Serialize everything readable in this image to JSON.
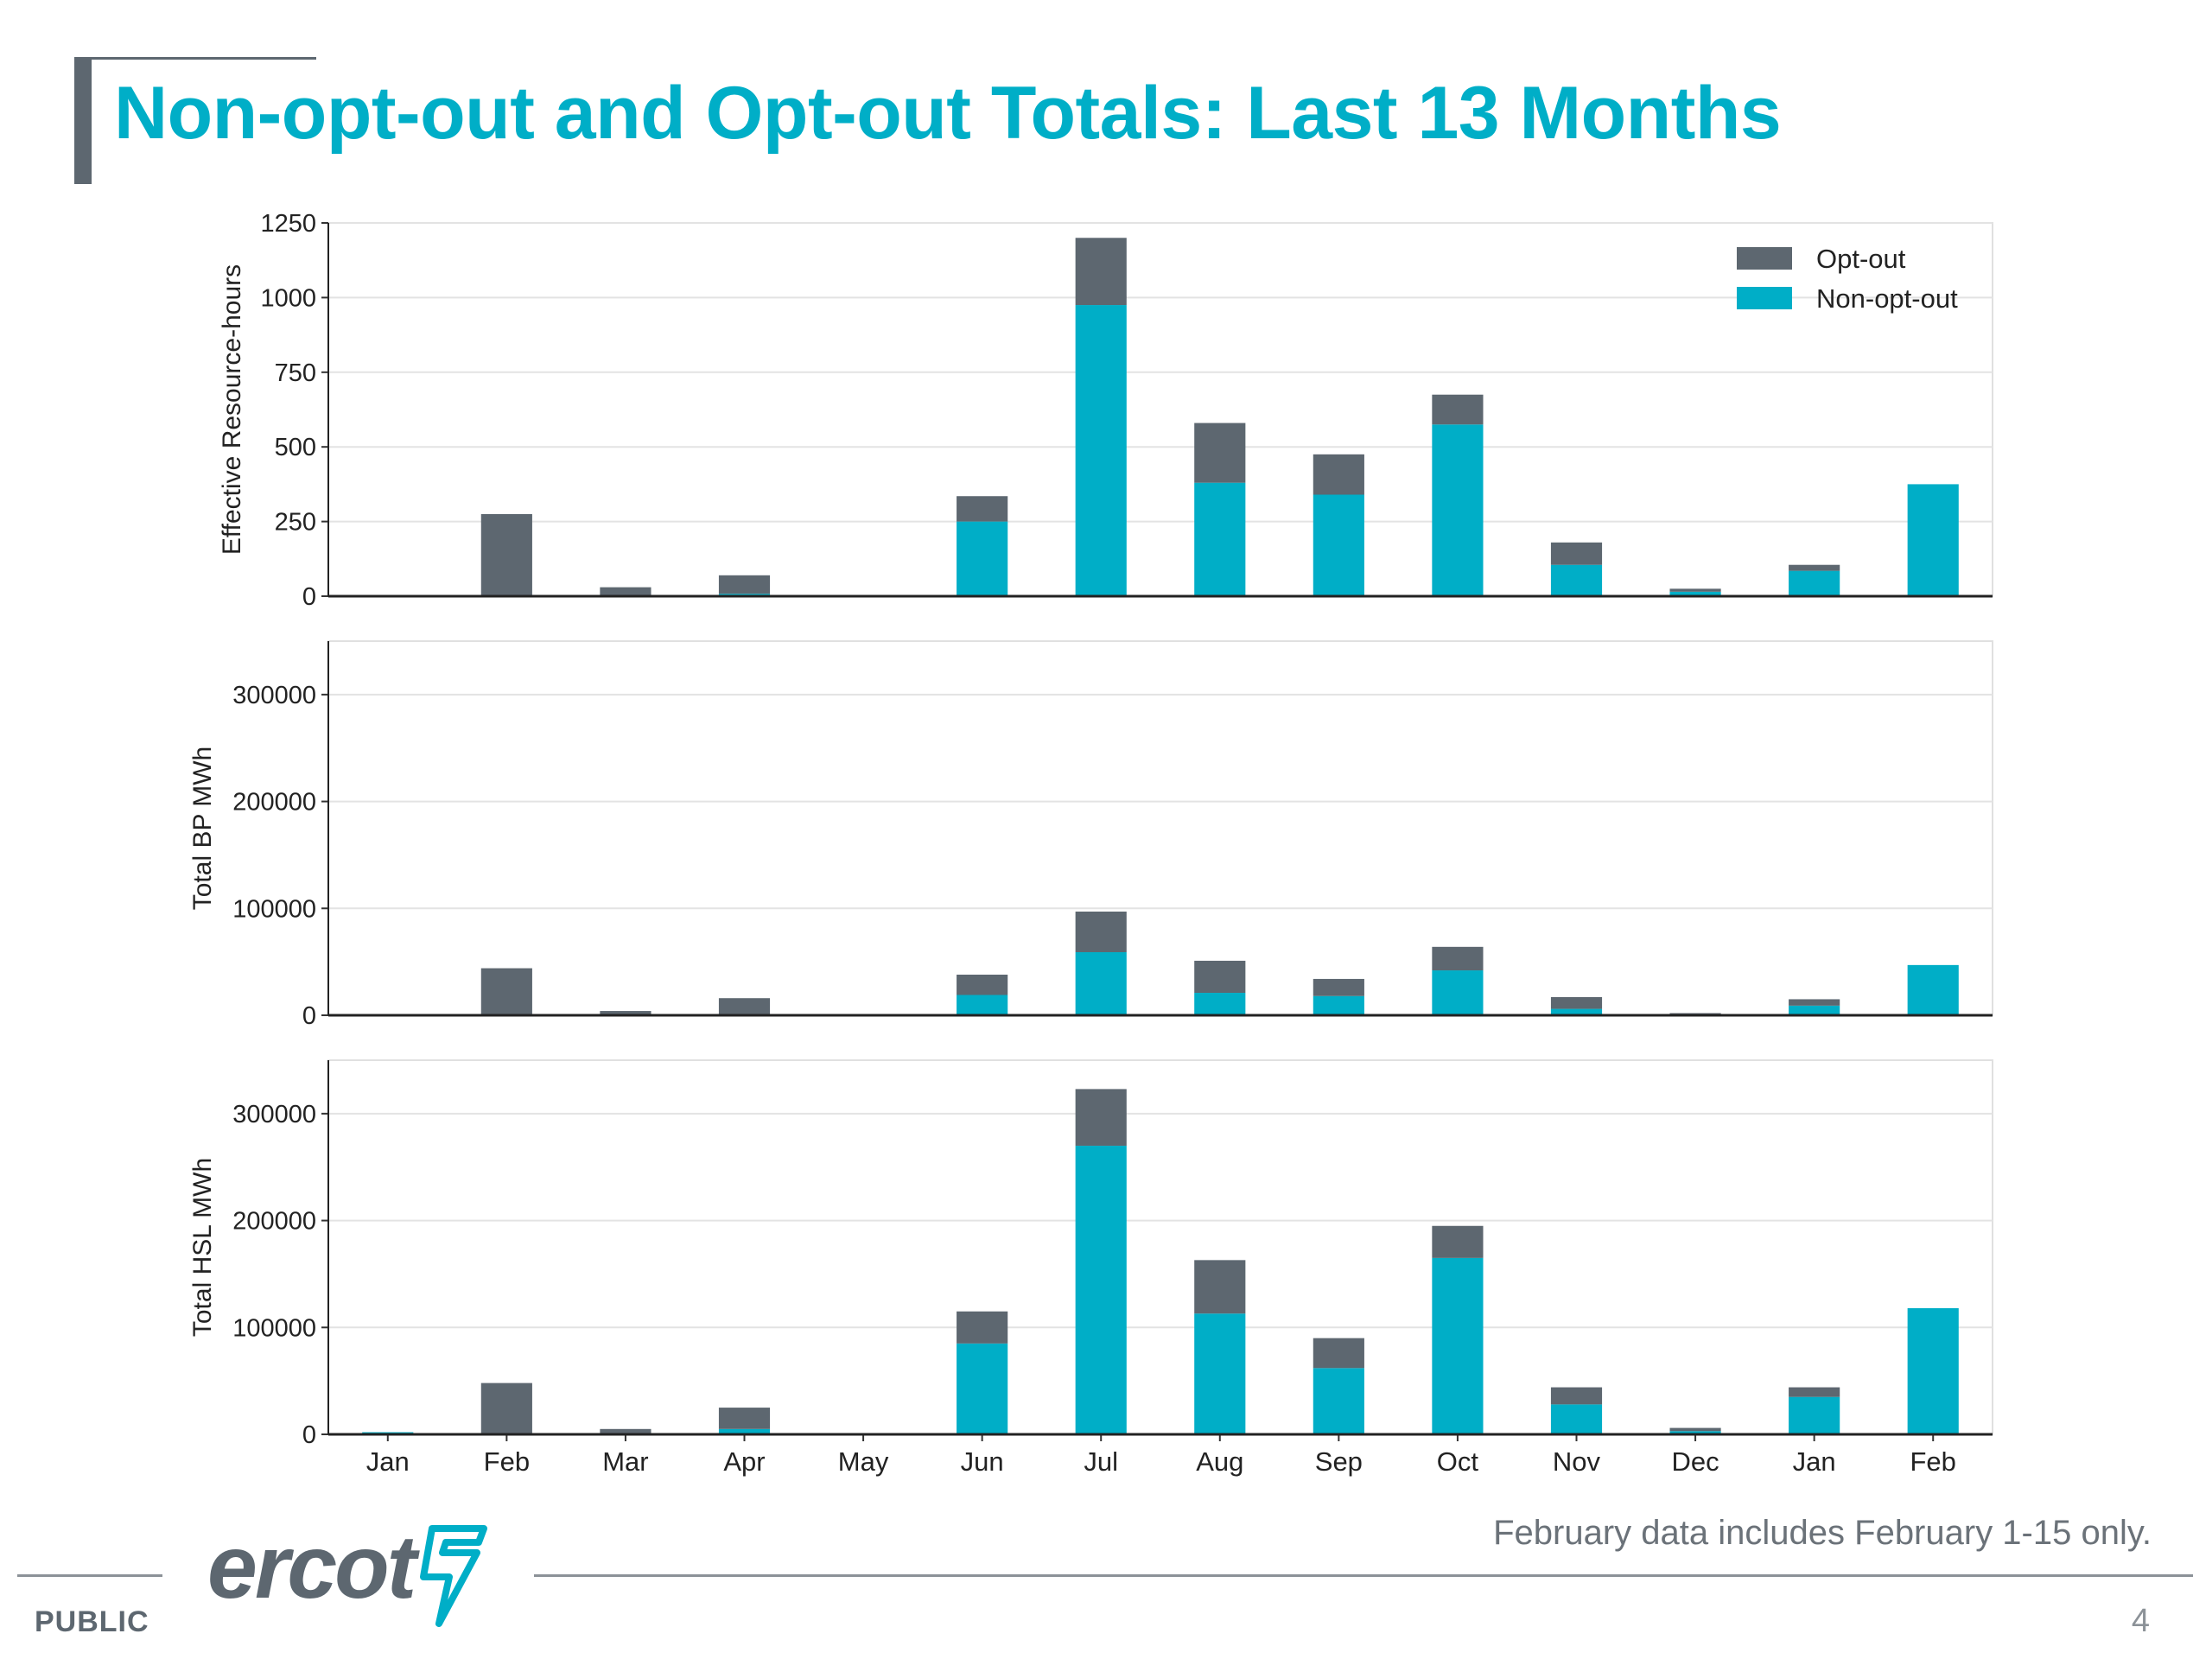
{
  "slide": {
    "title": "Non-opt-out and Opt-out Totals: Last 13 Months",
    "footnote": "February data includes February 1-15 only.",
    "classification": "PUBLIC",
    "page_number": "4",
    "logo_text": "ercot"
  },
  "colors": {
    "title": "#00aec7",
    "opt_out": "#5d6770",
    "non_opt_out": "#00aec7"
  },
  "chart_data": [
    {
      "type": "bar",
      "stacked": true,
      "categories": [
        "Jan",
        "Feb",
        "Mar",
        "Apr",
        "May",
        "Jun",
        "Jul",
        "Aug",
        "Sep",
        "Oct",
        "Nov",
        "Dec",
        "Jan",
        "Feb"
      ],
      "series": [
        {
          "name": "Non-opt-out",
          "color": "#00aec7",
          "values": [
            0,
            0,
            0,
            8,
            0,
            250,
            975,
            380,
            340,
            575,
            105,
            15,
            85,
            375
          ]
        },
        {
          "name": "Opt-out",
          "color": "#5d6770",
          "values": [
            0,
            275,
            30,
            62,
            0,
            85,
            225,
            200,
            135,
            100,
            75,
            10,
            20,
            0
          ]
        }
      ],
      "ylabel": "Effective Resource-hours",
      "ylim": [
        0,
        1250
      ],
      "yticks": [
        0,
        250,
        500,
        750,
        1000,
        1250
      ],
      "grid": true,
      "legend": {
        "entries": [
          "Opt-out",
          "Non-opt-out"
        ],
        "position": "top-right"
      },
      "show_xticks": false
    },
    {
      "type": "bar",
      "stacked": true,
      "categories": [
        "Jan",
        "Feb",
        "Mar",
        "Apr",
        "May",
        "Jun",
        "Jul",
        "Aug",
        "Sep",
        "Oct",
        "Nov",
        "Dec",
        "Jan",
        "Feb"
      ],
      "series": [
        {
          "name": "Non-opt-out",
          "color": "#00aec7",
          "values": [
            0,
            0,
            0,
            1000,
            0,
            19000,
            59000,
            21000,
            18000,
            42000,
            6000,
            1000,
            9000,
            47000
          ]
        },
        {
          "name": "Opt-out",
          "color": "#5d6770",
          "values": [
            0,
            44000,
            4000,
            15000,
            0,
            19000,
            38000,
            30000,
            16000,
            22000,
            11000,
            1000,
            6000,
            0
          ]
        }
      ],
      "ylabel": "Total BP MWh",
      "ylim": [
        0,
        350000
      ],
      "yticks": [
        0,
        100000,
        200000,
        300000
      ],
      "grid": true,
      "show_xticks": false
    },
    {
      "type": "bar",
      "stacked": true,
      "categories": [
        "Jan",
        "Feb",
        "Mar",
        "Apr",
        "May",
        "Jun",
        "Jul",
        "Aug",
        "Sep",
        "Oct",
        "Nov",
        "Dec",
        "Jan",
        "Feb"
      ],
      "series": [
        {
          "name": "Non-opt-out",
          "color": "#00aec7",
          "values": [
            2000,
            0,
            0,
            5000,
            0,
            85000,
            270000,
            113000,
            62000,
            165000,
            28000,
            3000,
            35000,
            118000
          ]
        },
        {
          "name": "Opt-out",
          "color": "#5d6770",
          "values": [
            0,
            48000,
            5000,
            20000,
            0,
            30000,
            53000,
            50000,
            28000,
            30000,
            16000,
            3000,
            9000,
            0
          ]
        }
      ],
      "ylabel": "Total HSL MWh",
      "ylim": [
        0,
        350000
      ],
      "yticks": [
        0,
        100000,
        200000,
        300000
      ],
      "grid": true,
      "show_xticks": true
    }
  ]
}
